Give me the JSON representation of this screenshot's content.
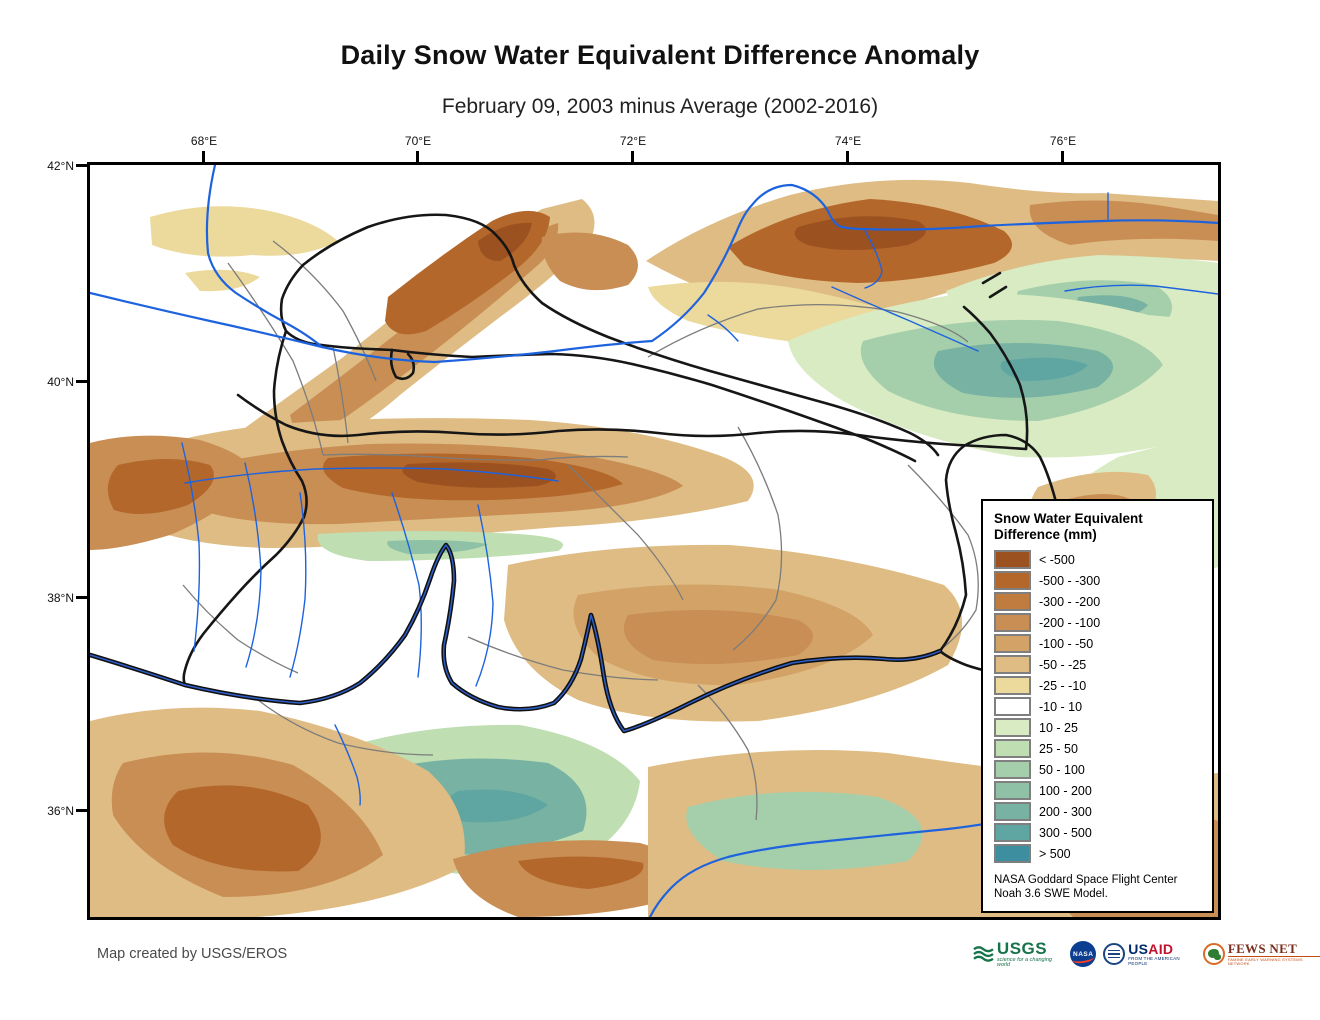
{
  "title": "Daily Snow Water Equivalent Difference Anomaly",
  "subtitle": "February 09, 2003 minus Average (2002-2016)",
  "axes": {
    "lon_labels": [
      "68°E",
      "70°E",
      "72°E",
      "74°E",
      "76°E"
    ],
    "lat_labels": [
      "42°N",
      "40°N",
      "38°N",
      "36°N"
    ]
  },
  "legend": {
    "title_line1": "Snow Water Equivalent",
    "title_line2": "Difference (mm)",
    "items": [
      {
        "label": "< -500",
        "color": "#9C5121"
      },
      {
        "label": "-500 - -300",
        "color": "#B3672B"
      },
      {
        "label": "-300 - -200",
        "color": "#C07C3E"
      },
      {
        "label": "-200 - -100",
        "color": "#C88E54"
      },
      {
        "label": "-100 - -50",
        "color": "#D2A266"
      },
      {
        "label": "-50 - -25",
        "color": "#DFBC84"
      },
      {
        "label": "-25 - -10",
        "color": "#ECD99C"
      },
      {
        "label": "-10 - 10",
        "color": "#FFFFFF"
      },
      {
        "label": "10 - 25",
        "color": "#D8EBC2"
      },
      {
        "label": "25 - 50",
        "color": "#BFDEB2"
      },
      {
        "label": "50 - 100",
        "color": "#A5CFAB"
      },
      {
        "label": "100 - 200",
        "color": "#8FC1A7"
      },
      {
        "label": "200 - 300",
        "color": "#77B2A2"
      },
      {
        "label": "300 - 500",
        "color": "#5FA5A1"
      },
      {
        "label": "> 500",
        "color": "#3D8F9F"
      }
    ],
    "source_line1": "NASA Goddard Space Flight Center",
    "source_line2": "Noah 3.6 SWE Model."
  },
  "footer": {
    "credit": "Map created by USGS/EROS",
    "logos": {
      "usgs_name": "USGS",
      "usgs_tagline": "science for a changing world",
      "nasa_name": "NASA",
      "usaid_us": "US",
      "usaid_aid": "AID",
      "usaid_tagline": "FROM THE AMERICAN PEOPLE",
      "fews_name": "FEWS NET",
      "fews_tagline": "FAMINE EARLY WARNING SYSTEMS NETWORK"
    }
  }
}
